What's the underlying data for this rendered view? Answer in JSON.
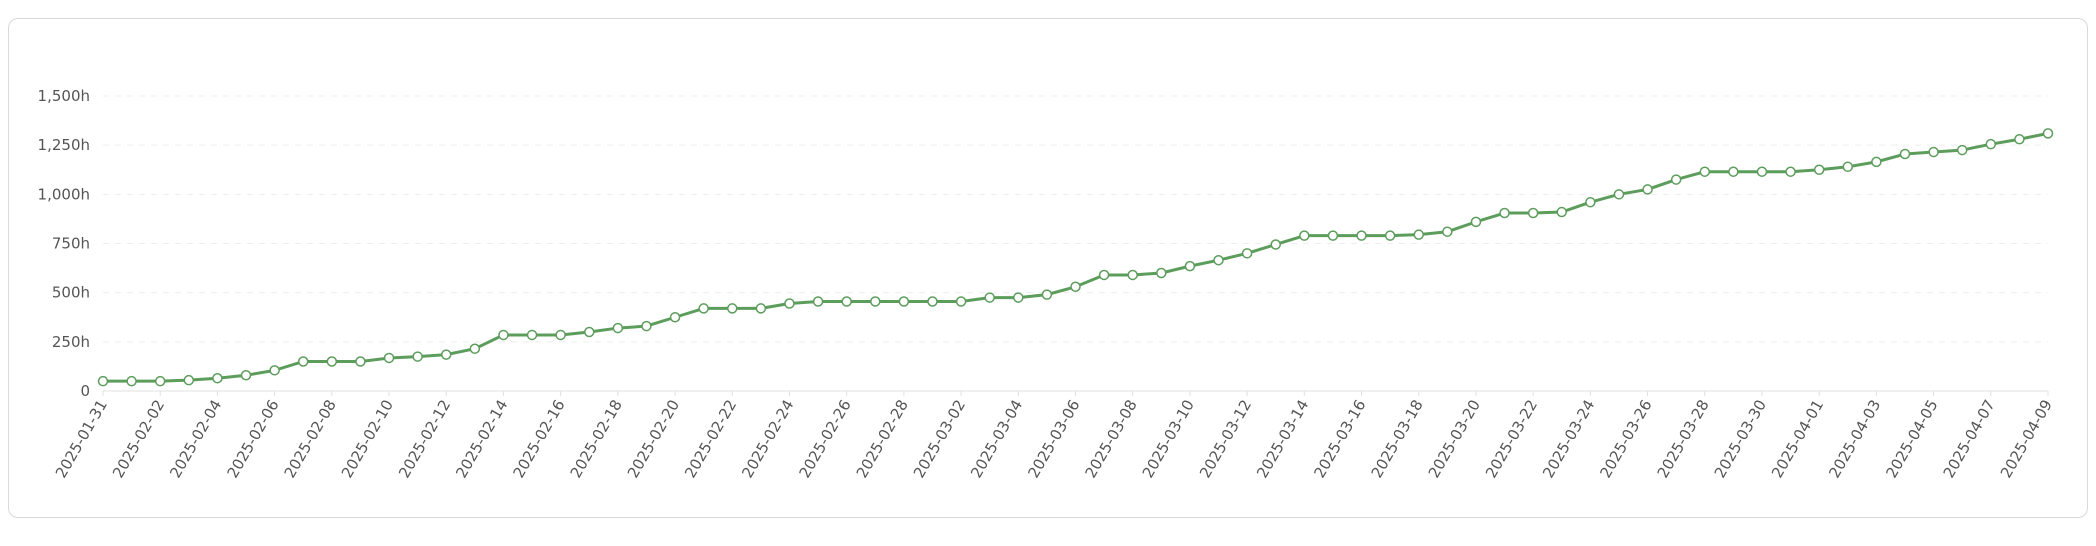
{
  "chart_data": {
    "type": "line",
    "x_start": "2025-01-31",
    "x_end": "2025-04-09",
    "x": [
      "2025-01-31",
      "2025-02-01",
      "2025-02-02",
      "2025-02-03",
      "2025-02-04",
      "2025-02-05",
      "2025-02-06",
      "2025-02-07",
      "2025-02-08",
      "2025-02-09",
      "2025-02-10",
      "2025-02-11",
      "2025-02-12",
      "2025-02-13",
      "2025-02-14",
      "2025-02-15",
      "2025-02-16",
      "2025-02-17",
      "2025-02-18",
      "2025-02-19",
      "2025-02-20",
      "2025-02-21",
      "2025-02-22",
      "2025-02-23",
      "2025-02-24",
      "2025-02-25",
      "2025-02-26",
      "2025-02-27",
      "2025-02-28",
      "2025-03-01",
      "2025-03-02",
      "2025-03-03",
      "2025-03-04",
      "2025-03-05",
      "2025-03-06",
      "2025-03-07",
      "2025-03-08",
      "2025-03-09",
      "2025-03-10",
      "2025-03-11",
      "2025-03-12",
      "2025-03-13",
      "2025-03-14",
      "2025-03-15",
      "2025-03-16",
      "2025-03-17",
      "2025-03-18",
      "2025-03-19",
      "2025-03-20",
      "2025-03-21",
      "2025-03-22",
      "2025-03-23",
      "2025-03-24",
      "2025-03-25",
      "2025-03-26",
      "2025-03-27",
      "2025-03-28",
      "2025-03-29",
      "2025-03-30",
      "2025-03-31",
      "2025-04-01",
      "2025-04-02",
      "2025-04-03",
      "2025-04-04",
      "2025-04-05",
      "2025-04-06",
      "2025-04-07",
      "2025-04-08",
      "2025-04-09"
    ],
    "x_tick_labels": [
      "2025-01-31",
      "2025-02-02",
      "2025-02-04",
      "2025-02-06",
      "2025-02-08",
      "2025-02-10",
      "2025-02-12",
      "2025-02-14",
      "2025-02-16",
      "2025-02-18",
      "2025-02-20",
      "2025-02-22",
      "2025-02-24",
      "2025-02-26",
      "2025-02-28",
      "2025-03-02",
      "2025-03-04",
      "2025-03-06",
      "2025-03-08",
      "2025-03-10",
      "2025-03-12",
      "2025-03-14",
      "2025-03-16",
      "2025-03-18",
      "2025-03-20",
      "2025-03-22",
      "2025-03-24",
      "2025-03-26",
      "2025-03-28",
      "2025-03-30",
      "2025-04-01",
      "2025-04-03",
      "2025-04-05",
      "2025-04-07",
      "2025-04-09"
    ],
    "series": [
      {
        "values": [
          50,
          50,
          50,
          55,
          65,
          80,
          105,
          150,
          150,
          150,
          168,
          175,
          185,
          215,
          285,
          285,
          285,
          300,
          320,
          330,
          375,
          420,
          420,
          420,
          445,
          455,
          455,
          455,
          455,
          455,
          455,
          475,
          475,
          490,
          530,
          590,
          590,
          600,
          635,
          665,
          700,
          745,
          790,
          790,
          790,
          790,
          795,
          810,
          860,
          905,
          905,
          910,
          960,
          1000,
          1025,
          1075,
          1115,
          1115,
          1115,
          1115,
          1125,
          1140,
          1165,
          1205,
          1215,
          1225,
          1255,
          1280,
          1310
        ],
        "color": "#5c9d5c"
      }
    ],
    "y_ticks": [
      0,
      250,
      500,
      750,
      1000,
      1250,
      1500
    ],
    "y_tick_labels": [
      "0",
      "250h",
      "500h",
      "750h",
      "1,000h",
      "1,250h",
      "1,500h"
    ],
    "ylim": [
      0,
      1500
    ],
    "title": "",
    "xlabel": "",
    "ylabel": "",
    "grid": true,
    "grid_style": "dashed-horizontal",
    "legend": "none",
    "marker": "hollow-circle",
    "marker_fill": "#ffffff"
  }
}
